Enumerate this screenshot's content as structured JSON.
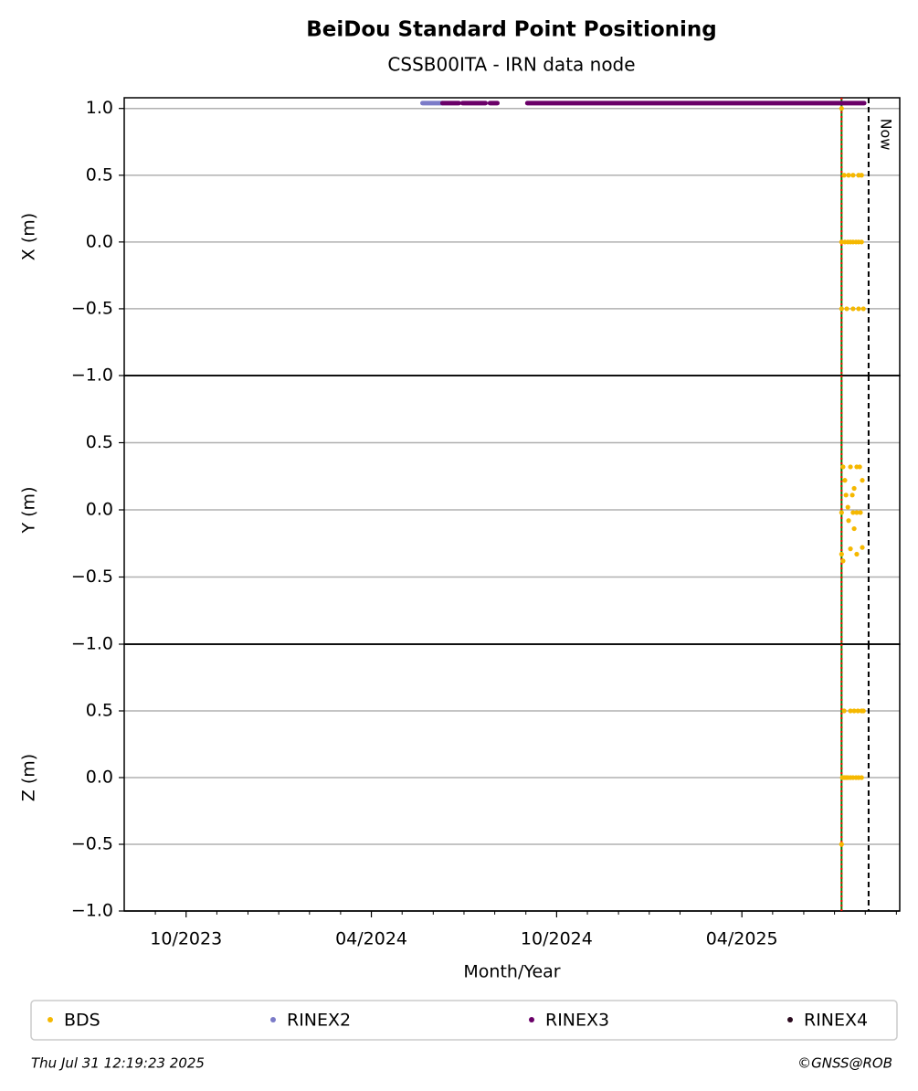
{
  "title": "BeiDou Standard Point Positioning",
  "subtitle": "CSSB00ITA - IRN data node",
  "footer": {
    "timestamp": "Thu Jul 31 12:19:23 2025",
    "credit": "©GNSS@ROB"
  },
  "chart_data": [
    {
      "type": "scatter",
      "ylabel": "X (m)",
      "ylim": [
        -1,
        1.08
      ],
      "yticks": [
        {
          "value": -1,
          "label": "−1.0"
        },
        {
          "value": -0.5,
          "label": "−0.5"
        },
        {
          "value": 0,
          "label": "0.0"
        },
        {
          "value": 0.5,
          "label": "0.5"
        },
        {
          "value": 1,
          "label": "1.0"
        }
      ],
      "grid": true,
      "vlines": [
        {
          "x": 2025.519,
          "color": "#008000",
          "style": "solid"
        },
        {
          "x": 2025.519,
          "color": "#ff0000",
          "style": "dotted"
        },
        {
          "x": 2025.592,
          "color": "#000000",
          "style": "dashed",
          "label": "Now"
        }
      ],
      "series": [
        {
          "name": "BDS",
          "color": "#f5b800",
          "x": [
            2025.519,
            2025.526,
            2025.538,
            2025.55,
            2025.565,
            2025.573,
            2025.519,
            2025.528,
            2025.536,
            2025.543,
            2025.55,
            2025.558,
            2025.565,
            2025.573,
            2025.519,
            2025.533,
            2025.55,
            2025.565,
            2025.578
          ],
          "values": [
            1,
            0.5,
            0.5,
            0.5,
            0.5,
            0.5,
            0,
            0,
            0,
            0,
            0,
            0,
            0,
            0,
            -0.5,
            -0.5,
            -0.5,
            -0.5,
            -0.5
          ]
        },
        {
          "name": "RINEX2",
          "color": "#7b7bc8",
          "level": 1.04,
          "spans": [
            [
              2024.388,
              2024.442
            ]
          ]
        },
        {
          "name": "RINEX3",
          "color": "#6a0068",
          "level": 1.04,
          "spans": [
            [
              2024.442,
              2024.486
            ],
            [
              2024.496,
              2024.558
            ],
            [
              2024.57,
              2024.59
            ],
            [
              2024.671,
              2025.58
            ]
          ]
        },
        {
          "name": "RINEX4",
          "color": "#2a0a1e",
          "level": 1.04,
          "spans": []
        }
      ]
    },
    {
      "type": "scatter",
      "ylabel": "Y (m)",
      "ylim": [
        -1,
        1
      ],
      "yticks": [
        {
          "value": -1,
          "label": "−1.0"
        },
        {
          "value": -0.5,
          "label": "−0.5"
        },
        {
          "value": 0,
          "label": "0.0"
        },
        {
          "value": 0.5,
          "label": "0.5"
        }
      ],
      "grid": true,
      "series": [
        {
          "name": "BDS",
          "color": "#f5b800",
          "x": [
            2025.523,
            2025.543,
            2025.56,
            2025.568,
            2025.528,
            2025.575,
            2025.553,
            2025.531,
            2025.548,
            2025.536,
            2025.519,
            2025.55,
            2025.56,
            2025.57,
            2025.538,
            2025.553,
            2025.543,
            2025.575,
            2025.519,
            2025.56,
            2025.523
          ],
          "values": [
            0.32,
            0.32,
            0.32,
            0.32,
            0.22,
            0.22,
            0.16,
            0.11,
            0.11,
            0.02,
            -0.02,
            -0.02,
            -0.02,
            -0.02,
            -0.08,
            -0.14,
            -0.29,
            -0.28,
            -0.33,
            -0.33,
            -0.38
          ]
        }
      ]
    },
    {
      "type": "scatter",
      "ylabel": "Z (m)",
      "ylim": [
        -1,
        1
      ],
      "yticks": [
        {
          "value": -1,
          "label": "−1.0"
        },
        {
          "value": -0.5,
          "label": "−0.5"
        },
        {
          "value": 0,
          "label": "0.0"
        },
        {
          "value": 0.5,
          "label": "0.5"
        }
      ],
      "grid": true,
      "xlabel": "Month/Year",
      "xlim": [
        2023.583,
        2025.676
      ],
      "xticks": [
        {
          "value": 2023.75,
          "label": "10/2023"
        },
        {
          "value": 2024.25,
          "label": "04/2024"
        },
        {
          "value": 2024.75,
          "label": "10/2024"
        },
        {
          "value": 2025.25,
          "label": "04/2025"
        }
      ],
      "xminorticks": [
        2023.667,
        2023.833,
        2023.917,
        2024.0,
        2024.083,
        2024.167,
        2024.333,
        2024.417,
        2024.5,
        2024.583,
        2024.667,
        2024.833,
        2024.917,
        2025.0,
        2025.083,
        2025.167,
        2025.333,
        2025.417,
        2025.5,
        2025.583,
        2025.667
      ],
      "series": [
        {
          "name": "BDS",
          "color": "#f5b800",
          "x": [
            2025.526,
            2025.543,
            2025.553,
            2025.563,
            2025.573,
            2025.578,
            2025.521,
            2025.526,
            2025.531,
            2025.536,
            2025.543,
            2025.55,
            2025.558,
            2025.565,
            2025.573,
            2025.519
          ],
          "values": [
            0.5,
            0.5,
            0.5,
            0.5,
            0.5,
            0.5,
            0,
            0,
            0,
            0,
            0,
            0,
            0,
            0,
            0,
            -0.5
          ]
        }
      ]
    }
  ]
}
